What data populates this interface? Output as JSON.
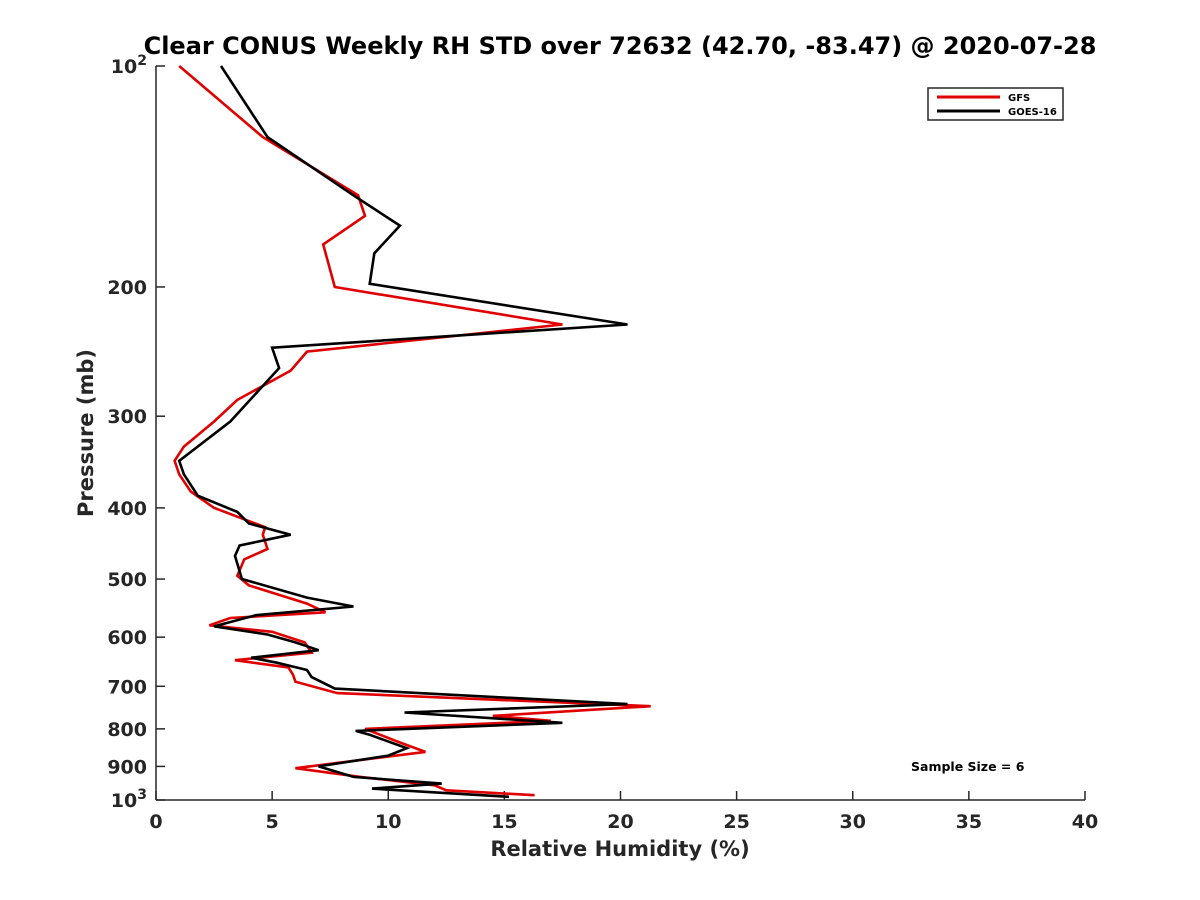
{
  "chart_data": {
    "type": "line",
    "title": "Clear CONUS Weekly RH STD over 72632 (42.70, -83.47) @ 2020-07-28",
    "xlabel": "Relative Humidity (%)",
    "ylabel": "Pressure (mb)",
    "xlim": [
      0,
      40
    ],
    "ylim": [
      100,
      1000
    ],
    "yscale": "log",
    "y_reversed": true,
    "grid": false,
    "legend_position": "top-right",
    "x_ticks": [
      "0",
      "5",
      "10",
      "15",
      "20",
      "25",
      "30",
      "35",
      "40"
    ],
    "y_ticks": [
      {
        "value": 100,
        "base": "10",
        "exp": "2"
      },
      {
        "value": 200,
        "label": "200"
      },
      {
        "value": 300,
        "label": "300"
      },
      {
        "value": 400,
        "label": "400"
      },
      {
        "value": 500,
        "label": "500"
      },
      {
        "value": 600,
        "label": "600"
      },
      {
        "value": 700,
        "label": "700"
      },
      {
        "value": 800,
        "label": "800"
      },
      {
        "value": 900,
        "label": "900"
      },
      {
        "value": 1000,
        "base": "10",
        "exp": "3"
      }
    ],
    "annotation": "Sample Size = 6",
    "series": [
      {
        "name": "GFS",
        "color": "#e00000",
        "points": [
          [
            1.0,
            100
          ],
          [
            4.6,
            125
          ],
          [
            8.7,
            150
          ],
          [
            9.0,
            160
          ],
          [
            7.2,
            175
          ],
          [
            7.7,
            200
          ],
          [
            17.5,
            225
          ],
          [
            6.5,
            245
          ],
          [
            5.8,
            260
          ],
          [
            3.5,
            285
          ],
          [
            2.5,
            305
          ],
          [
            1.2,
            330
          ],
          [
            0.8,
            345
          ],
          [
            1.0,
            360
          ],
          [
            1.5,
            380
          ],
          [
            2.5,
            400
          ],
          [
            4.7,
            425
          ],
          [
            4.6,
            435
          ],
          [
            4.8,
            455
          ],
          [
            3.8,
            470
          ],
          [
            3.5,
            495
          ],
          [
            4.0,
            510
          ],
          [
            6.5,
            540
          ],
          [
            7.3,
            555
          ],
          [
            3.2,
            565
          ],
          [
            2.3,
            578
          ],
          [
            5.0,
            590
          ],
          [
            6.4,
            610
          ],
          [
            6.7,
            630
          ],
          [
            3.4,
            645
          ],
          [
            5.7,
            660
          ],
          [
            5.9,
            675
          ],
          [
            6.0,
            690
          ],
          [
            7.8,
            715
          ],
          [
            21.3,
            745
          ],
          [
            14.5,
            768
          ],
          [
            17.0,
            780
          ],
          [
            9.0,
            800
          ],
          [
            10.5,
            835
          ],
          [
            11.6,
            860
          ],
          [
            6.0,
            905
          ],
          [
            8.8,
            930
          ],
          [
            12.0,
            955
          ],
          [
            12.5,
            970
          ],
          [
            16.3,
            985
          ]
        ]
      },
      {
        "name": "GOES-16",
        "color": "#000000",
        "points": [
          [
            2.8,
            100
          ],
          [
            4.8,
            125
          ],
          [
            8.5,
            150
          ],
          [
            10.5,
            165
          ],
          [
            9.4,
            180
          ],
          [
            9.2,
            198
          ],
          [
            20.3,
            225
          ],
          [
            5.0,
            242
          ],
          [
            5.3,
            258
          ],
          [
            4.5,
            275
          ],
          [
            3.2,
            305
          ],
          [
            1.0,
            345
          ],
          [
            1.2,
            360
          ],
          [
            1.8,
            385
          ],
          [
            3.5,
            405
          ],
          [
            4.0,
            420
          ],
          [
            5.8,
            435
          ],
          [
            3.6,
            450
          ],
          [
            3.4,
            465
          ],
          [
            3.7,
            500
          ],
          [
            6.5,
            530
          ],
          [
            8.5,
            545
          ],
          [
            4.3,
            560
          ],
          [
            2.5,
            580
          ],
          [
            4.8,
            595
          ],
          [
            6.0,
            610
          ],
          [
            7.0,
            625
          ],
          [
            4.1,
            640
          ],
          [
            5.2,
            650
          ],
          [
            6.5,
            665
          ],
          [
            6.7,
            680
          ],
          [
            7.7,
            705
          ],
          [
            20.3,
            740
          ],
          [
            10.7,
            760
          ],
          [
            17.5,
            785
          ],
          [
            8.6,
            805
          ],
          [
            9.2,
            815
          ],
          [
            10.8,
            850
          ],
          [
            10.0,
            870
          ],
          [
            7.0,
            900
          ],
          [
            8.5,
            930
          ],
          [
            12.3,
            950
          ],
          [
            9.3,
            965
          ],
          [
            15.2,
            990
          ]
        ]
      }
    ]
  }
}
